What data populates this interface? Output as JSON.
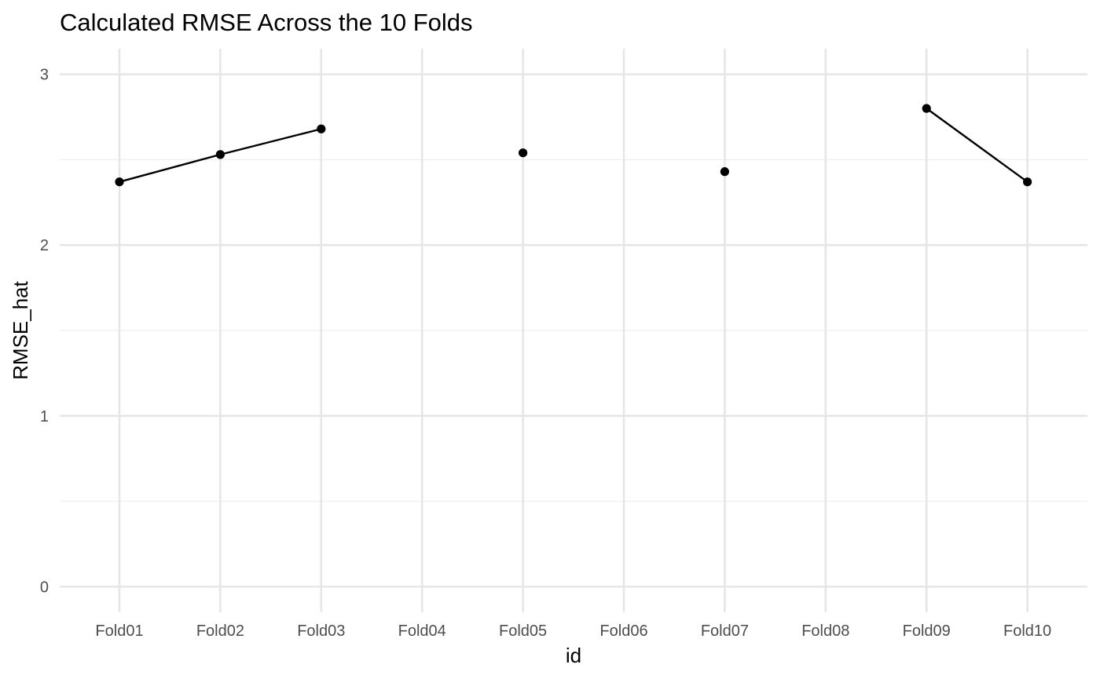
{
  "chart_data": {
    "type": "line",
    "title": "Calculated RMSE Across the 10 Folds",
    "xlabel": "id",
    "ylabel": "RMSE_hat",
    "categories": [
      "Fold01",
      "Fold02",
      "Fold03",
      "Fold04",
      "Fold05",
      "Fold06",
      "Fold07",
      "Fold08",
      "Fold09",
      "Fold10"
    ],
    "values": [
      2.37,
      2.53,
      2.68,
      null,
      2.54,
      null,
      2.43,
      null,
      2.8,
      2.37
    ],
    "ylim": [
      -0.15,
      3.15
    ],
    "yticks": [
      0,
      1,
      2,
      3
    ],
    "y_minor_ticks": [
      0.5,
      1.5,
      2.5
    ],
    "grid": true,
    "legend": "none",
    "colors": {
      "line": "#000000",
      "point": "#000000",
      "grid": "#e6e6e6"
    }
  }
}
